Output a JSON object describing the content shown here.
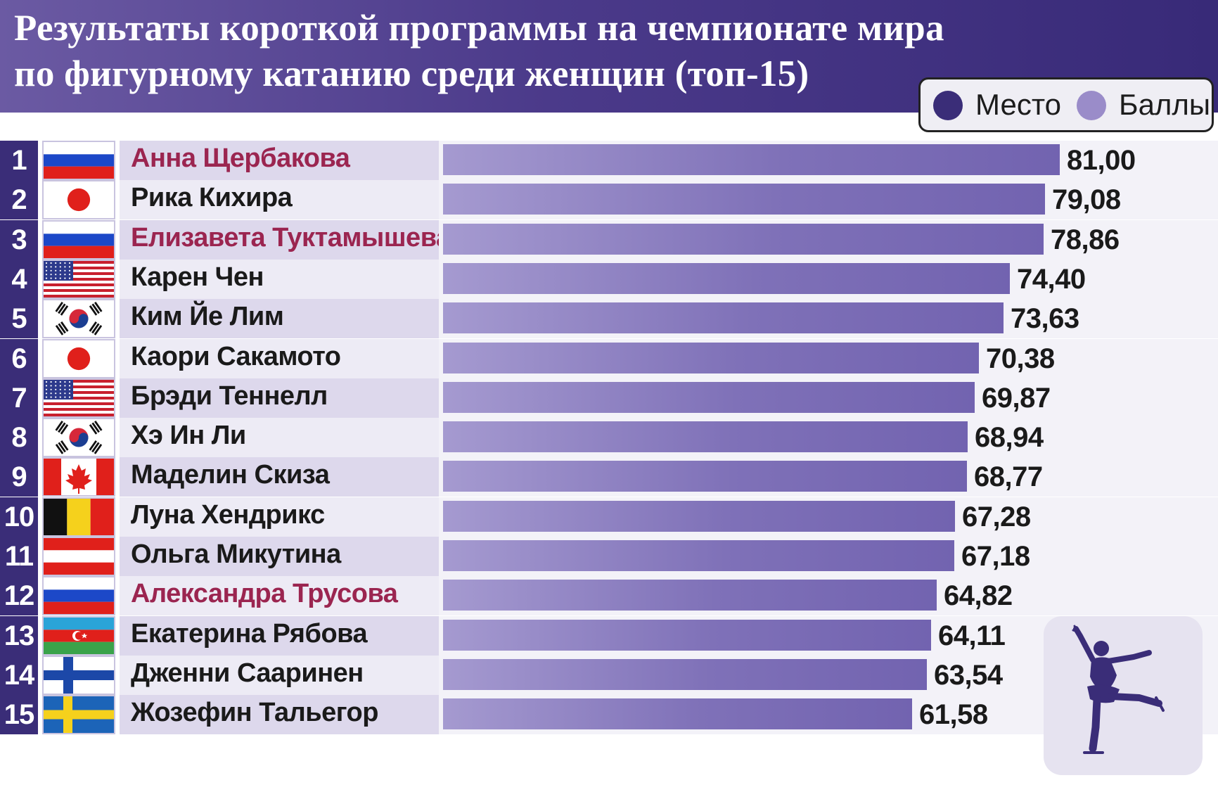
{
  "header": {
    "title_line1": "Результаты короткой программы на чемпионате мира",
    "title_line2": "по фигурному катанию среди женщин (топ-15)"
  },
  "legend": {
    "place_label": "Место",
    "score_label": "Баллы"
  },
  "colors": {
    "place": "#3a2d78",
    "score": "#9a8cc9",
    "russian_name": "#9b2550"
  },
  "chart_data": {
    "type": "bar",
    "orientation": "horizontal",
    "title": "Результаты короткой программы на чемпионате мира по фигурному катанию среди женщин (топ-15)",
    "legend": [
      "Место",
      "Баллы"
    ],
    "xlim": [
      0,
      81
    ],
    "rows": [
      {
        "rank": "1",
        "flag": "russia",
        "name": "Анна Щербакова",
        "score": 81.0,
        "score_label": "81,00",
        "highlight": true
      },
      {
        "rank": "2",
        "flag": "japan",
        "name": "Рика Кихира",
        "score": 79.08,
        "score_label": "79,08",
        "highlight": false
      },
      {
        "rank": "3",
        "flag": "russia",
        "name": "Елизавета Туктамышева",
        "score": 78.86,
        "score_label": "78,86",
        "highlight": true
      },
      {
        "rank": "4",
        "flag": "usa",
        "name": "Карен Чен",
        "score": 74.4,
        "score_label": "74,40",
        "highlight": false
      },
      {
        "rank": "5",
        "flag": "south-korea",
        "name": "Ким Йе Лим",
        "score": 73.63,
        "score_label": "73,63",
        "highlight": false
      },
      {
        "rank": "6",
        "flag": "japan",
        "name": "Каори Сакамото",
        "score": 70.38,
        "score_label": "70,38",
        "highlight": false
      },
      {
        "rank": "7",
        "flag": "usa",
        "name": "Брэди Теннелл",
        "score": 69.87,
        "score_label": "69,87",
        "highlight": false
      },
      {
        "rank": "8",
        "flag": "south-korea",
        "name": "Хэ Ин Ли",
        "score": 68.94,
        "score_label": "68,94",
        "highlight": false
      },
      {
        "rank": "9",
        "flag": "canada",
        "name": "Маделин Скиза",
        "score": 68.77,
        "score_label": "68,77",
        "highlight": false
      },
      {
        "rank": "10",
        "flag": "belgium",
        "name": "Луна Хендрикс",
        "score": 67.28,
        "score_label": "67,28",
        "highlight": false
      },
      {
        "rank": "11",
        "flag": "austria",
        "name": "Ольга Микутина",
        "score": 67.18,
        "score_label": "67,18",
        "highlight": false
      },
      {
        "rank": "12",
        "flag": "russia",
        "name": "Александра Трусова",
        "score": 64.82,
        "score_label": "64,82",
        "highlight": true
      },
      {
        "rank": "13",
        "flag": "azerbaijan",
        "name": "Екатерина Рябова",
        "score": 64.11,
        "score_label": "64,11",
        "highlight": false
      },
      {
        "rank": "14",
        "flag": "finland",
        "name": "Дженни Сааринен",
        "score": 63.54,
        "score_label": "63,54",
        "highlight": false
      },
      {
        "rank": "15",
        "flag": "sweden",
        "name": "Жозефин Тальегор",
        "score": 61.58,
        "score_label": "61,58",
        "highlight": false
      }
    ]
  },
  "decoration": {
    "icon": "figure-skater-icon"
  }
}
